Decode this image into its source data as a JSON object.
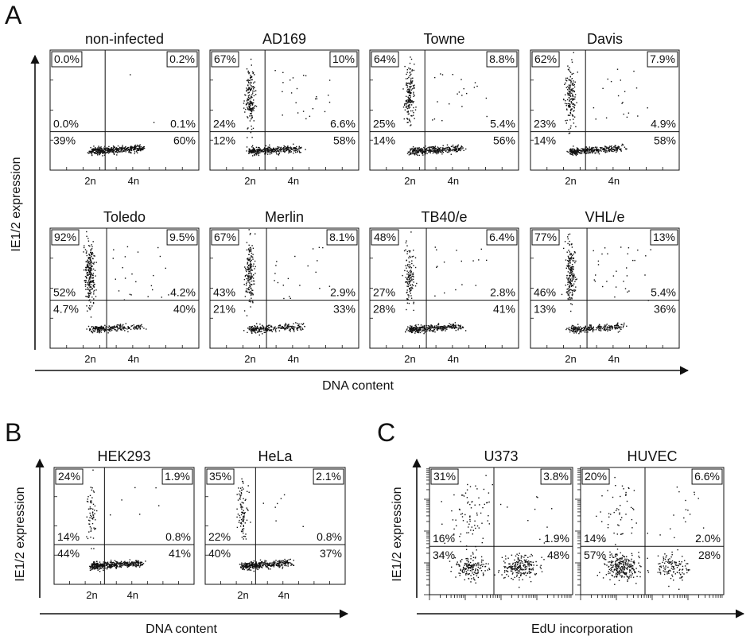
{
  "panels": [
    {
      "letter": "A",
      "xlabel": "DNA content",
      "ylabel": "IE1/2 expression",
      "xaxis": "dna",
      "plots": [
        {
          "title": "non-infected",
          "boxed_ul": "0.0%",
          "boxed_ur": "0.2%",
          "ll_upper": "0.0%",
          "lr_upper": "0.1%",
          "ll_lower": "39%",
          "lr_lower": "60%"
        },
        {
          "title": "AD169",
          "boxed_ul": "67%",
          "boxed_ur": "10%",
          "ll_upper": "24%",
          "lr_upper": "6.6%",
          "ll_lower": "12%",
          "lr_lower": "58%"
        },
        {
          "title": "Towne",
          "boxed_ul": "64%",
          "boxed_ur": "8.8%",
          "ll_upper": "25%",
          "lr_upper": "5.4%",
          "ll_lower": "14%",
          "lr_lower": "56%"
        },
        {
          "title": "Davis",
          "boxed_ul": "62%",
          "boxed_ur": "7.9%",
          "ll_upper": "23%",
          "lr_upper": "4.9%",
          "ll_lower": "14%",
          "lr_lower": "58%"
        },
        {
          "title": "Toledo",
          "boxed_ul": "92%",
          "boxed_ur": "9.5%",
          "ll_upper": "52%",
          "lr_upper": "4.2%",
          "ll_lower": "4.7%",
          "lr_lower": "40%"
        },
        {
          "title": "Merlin",
          "boxed_ul": "67%",
          "boxed_ur": "8.1%",
          "ll_upper": "43%",
          "lr_upper": "2.9%",
          "ll_lower": "21%",
          "lr_lower": "33%"
        },
        {
          "title": "TB40/e",
          "boxed_ul": "48%",
          "boxed_ur": "6.4%",
          "ll_upper": "27%",
          "lr_upper": "2.8%",
          "ll_lower": "28%",
          "lr_lower": "41%"
        },
        {
          "title": "VHL/e",
          "boxed_ul": "77%",
          "boxed_ur": "13%",
          "ll_upper": "46%",
          "lr_upper": "5.4%",
          "ll_lower": "13%",
          "lr_lower": "36%"
        }
      ]
    },
    {
      "letter": "B",
      "xlabel": "DNA content",
      "ylabel": "IE1/2 expression",
      "xaxis": "dna",
      "plots": [
        {
          "title": "HEK293",
          "boxed_ul": "24%",
          "boxed_ur": "1.9%",
          "ll_upper": "14%",
          "lr_upper": "0.8%",
          "ll_lower": "44%",
          "lr_lower": "41%"
        },
        {
          "title": "HeLa",
          "boxed_ul": "35%",
          "boxed_ur": "2.1%",
          "ll_upper": "22%",
          "lr_upper": "0.8%",
          "ll_lower": "40%",
          "lr_lower": "37%"
        }
      ]
    },
    {
      "letter": "C",
      "xlabel": "EdU incorporation",
      "ylabel": "IE1/2 expression",
      "xaxis": "log",
      "plots": [
        {
          "title": "U373",
          "boxed_ul": "31%",
          "boxed_ur": "3.8%",
          "ll_upper": "16%",
          "lr_upper": "1.9%",
          "ll_lower": "34%",
          "lr_lower": "48%"
        },
        {
          "title": "HUVEC",
          "boxed_ul": "20%",
          "boxed_ur": "6.6%",
          "ll_upper": "14%",
          "lr_upper": "2.0%",
          "ll_lower": "57%",
          "lr_lower": "28%"
        }
      ]
    }
  ],
  "dna_ticks": [
    "2n",
    "4n"
  ],
  "chart_data": [
    {
      "type": "scatter",
      "description_source": "quadrant percentages printed on each flow cytometry plot",
      "xlabel": "DNA content",
      "ylabel": "IE1/2 expression",
      "x_ticks": [
        "2n",
        "4n"
      ],
      "series": [
        {
          "name": "non-infected",
          "quadrants": {
            "upper_left_total": 0.0,
            "upper_right_total": 0.2,
            "upper_left_inner": 0.0,
            "upper_right_inner": 0.1,
            "lower_left": 39,
            "lower_right": 60
          }
        },
        {
          "name": "AD169",
          "quadrants": {
            "upper_left_total": 67,
            "upper_right_total": 10,
            "upper_left_inner": 24,
            "upper_right_inner": 6.6,
            "lower_left": 12,
            "lower_right": 58
          }
        },
        {
          "name": "Towne",
          "quadrants": {
            "upper_left_total": 64,
            "upper_right_total": 8.8,
            "upper_left_inner": 25,
            "upper_right_inner": 5.4,
            "lower_left": 14,
            "lower_right": 56
          }
        },
        {
          "name": "Davis",
          "quadrants": {
            "upper_left_total": 62,
            "upper_right_total": 7.9,
            "upper_left_inner": 23,
            "upper_right_inner": 4.9,
            "lower_left": 14,
            "lower_right": 58
          }
        },
        {
          "name": "Toledo",
          "quadrants": {
            "upper_left_total": 92,
            "upper_right_total": 9.5,
            "upper_left_inner": 52,
            "upper_right_inner": 4.2,
            "lower_left": 4.7,
            "lower_right": 40
          }
        },
        {
          "name": "Merlin",
          "quadrants": {
            "upper_left_total": 67,
            "upper_right_total": 8.1,
            "upper_left_inner": 43,
            "upper_right_inner": 2.9,
            "lower_left": 21,
            "lower_right": 33
          }
        },
        {
          "name": "TB40/e",
          "quadrants": {
            "upper_left_total": 48,
            "upper_right_total": 6.4,
            "upper_left_inner": 27,
            "upper_right_inner": 2.8,
            "lower_left": 28,
            "lower_right": 41
          }
        },
        {
          "name": "VHL/e",
          "quadrants": {
            "upper_left_total": 77,
            "upper_right_total": 13,
            "upper_left_inner": 46,
            "upper_right_inner": 5.4,
            "lower_left": 13,
            "lower_right": 36
          }
        }
      ]
    },
    {
      "type": "scatter",
      "xlabel": "DNA content",
      "ylabel": "IE1/2 expression",
      "x_ticks": [
        "2n",
        "4n"
      ],
      "series": [
        {
          "name": "HEK293",
          "quadrants": {
            "upper_left_total": 24,
            "upper_right_total": 1.9,
            "upper_left_inner": 14,
            "upper_right_inner": 0.8,
            "lower_left": 44,
            "lower_right": 41
          }
        },
        {
          "name": "HeLa",
          "quadrants": {
            "upper_left_total": 35,
            "upper_right_total": 2.1,
            "upper_left_inner": 22,
            "upper_right_inner": 0.8,
            "lower_left": 40,
            "lower_right": 37
          }
        }
      ]
    },
    {
      "type": "scatter",
      "xlabel": "EdU incorporation",
      "ylabel": "IE1/2 expression",
      "x_scale": "log",
      "series": [
        {
          "name": "U373",
          "quadrants": {
            "upper_left_total": 31,
            "upper_right_total": 3.8,
            "upper_left_inner": 16,
            "upper_right_inner": 1.9,
            "lower_left": 34,
            "lower_right": 48
          }
        },
        {
          "name": "HUVEC",
          "quadrants": {
            "upper_left_total": 20,
            "upper_right_total": 6.6,
            "upper_left_inner": 14,
            "upper_right_inner": 2.0,
            "lower_left": 57,
            "lower_right": 28
          }
        }
      ]
    }
  ]
}
